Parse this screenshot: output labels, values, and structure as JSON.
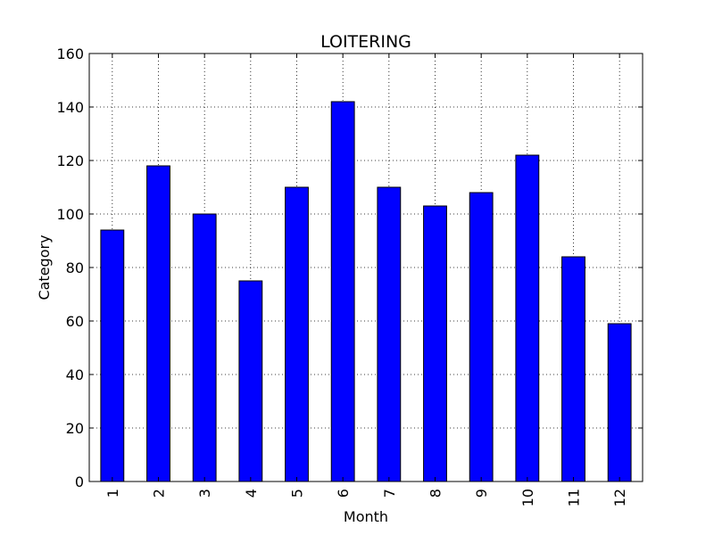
{
  "chart_data": {
    "type": "bar",
    "title": "LOITERING",
    "xlabel": "Month",
    "ylabel": "Category",
    "categories": [
      "1",
      "2",
      "3",
      "4",
      "5",
      "6",
      "7",
      "8",
      "9",
      "10",
      "11",
      "12"
    ],
    "values": [
      94,
      118,
      100,
      75,
      110,
      142,
      110,
      103,
      108,
      122,
      84,
      59
    ],
    "ylim": [
      0,
      160
    ],
    "yticks": [
      0,
      20,
      40,
      60,
      80,
      100,
      120,
      140,
      160
    ],
    "grid": true,
    "bar_color": "#0000ff",
    "edge_color": "#000000"
  }
}
